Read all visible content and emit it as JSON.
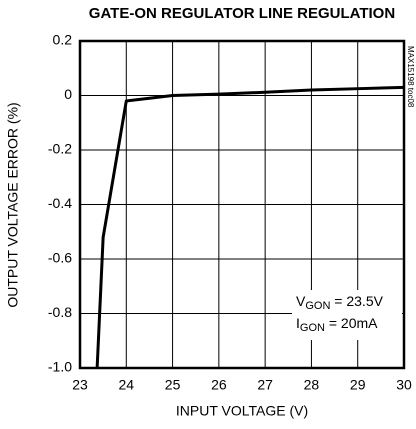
{
  "chart_data": {
    "type": "line",
    "title": "GATE-ON REGULATOR LINE REGULATION",
    "x_label": "INPUT VOLTAGE (V)",
    "y_label": "OUTPUT VOLTAGE ERROR (%)",
    "side_note": "MAX15198 toc08",
    "annotations": [
      [
        "V",
        "GON",
        " = 23.5V"
      ],
      [
        "I",
        "GON",
        " = 20mA"
      ]
    ],
    "series": [
      {
        "color": "#000000",
        "x": [
          23.37,
          23.5,
          24.0,
          24.5,
          25,
          26,
          27,
          28,
          29,
          30
        ],
        "values": [
          -1.0,
          -0.52,
          -0.02,
          -0.01,
          0,
          0.005,
          0.012,
          0.02,
          0.025,
          0.03
        ]
      }
    ],
    "xlim": [
      23,
      30
    ],
    "xticks": [
      23,
      24,
      25,
      26,
      27,
      28,
      29,
      30
    ],
    "ylim": [
      -1.0,
      0.2
    ],
    "yticks": [
      {
        "value": -1.0,
        "label": "-1.0"
      },
      -0.8,
      -0.6,
      -0.4,
      -0.2,
      0,
      0.2
    ],
    "grid": true
  }
}
